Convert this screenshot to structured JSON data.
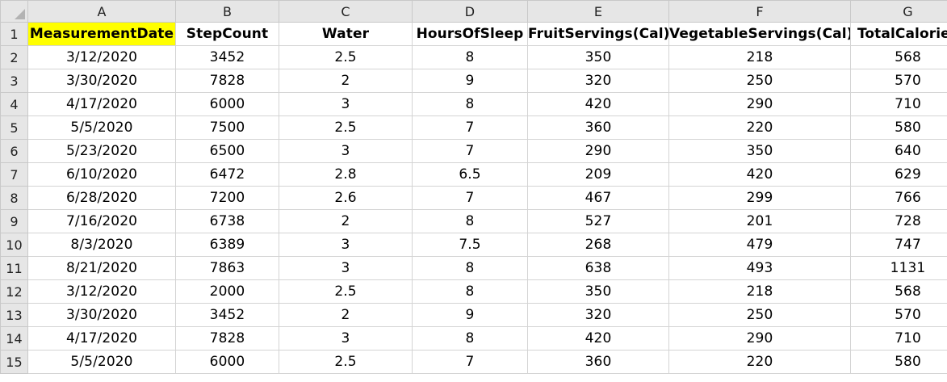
{
  "sheet": {
    "column_letters": [
      "A",
      "B",
      "C",
      "D",
      "E",
      "F",
      "G"
    ],
    "row_numbers": [
      "1",
      "2",
      "3",
      "4",
      "5",
      "6",
      "7",
      "8",
      "9",
      "10",
      "11",
      "12",
      "13",
      "14",
      "15"
    ],
    "headers": [
      "MeasurementDate",
      "StepCount",
      "Water",
      "HoursOfSleep",
      "FruitServings(Cal)",
      "VegetableServings(Cal)",
      "TotalCalories"
    ],
    "highlighted_header_color": "#ffff00",
    "rows": [
      [
        "3/12/2020",
        "3452",
        "2.5",
        "8",
        "350",
        "218",
        "568"
      ],
      [
        "3/30/2020",
        "7828",
        "2",
        "9",
        "320",
        "250",
        "570"
      ],
      [
        "4/17/2020",
        "6000",
        "3",
        "8",
        "420",
        "290",
        "710"
      ],
      [
        "5/5/2020",
        "7500",
        "2.5",
        "7",
        "360",
        "220",
        "580"
      ],
      [
        "5/23/2020",
        "6500",
        "3",
        "7",
        "290",
        "350",
        "640"
      ],
      [
        "6/10/2020",
        "6472",
        "2.8",
        "6.5",
        "209",
        "420",
        "629"
      ],
      [
        "6/28/2020",
        "7200",
        "2.6",
        "7",
        "467",
        "299",
        "766"
      ],
      [
        "7/16/2020",
        "6738",
        "2",
        "8",
        "527",
        "201",
        "728"
      ],
      [
        "8/3/2020",
        "6389",
        "3",
        "7.5",
        "268",
        "479",
        "747"
      ],
      [
        "8/21/2020",
        "7863",
        "3",
        "8",
        "638",
        "493",
        "1131"
      ],
      [
        "3/12/2020",
        "2000",
        "2.5",
        "8",
        "350",
        "218",
        "568"
      ],
      [
        "3/30/2020",
        "3452",
        "2",
        "9",
        "320",
        "250",
        "570"
      ],
      [
        "4/17/2020",
        "7828",
        "3",
        "8",
        "420",
        "290",
        "710"
      ],
      [
        "5/5/2020",
        "6000",
        "2.5",
        "7",
        "360",
        "220",
        "580"
      ]
    ]
  }
}
